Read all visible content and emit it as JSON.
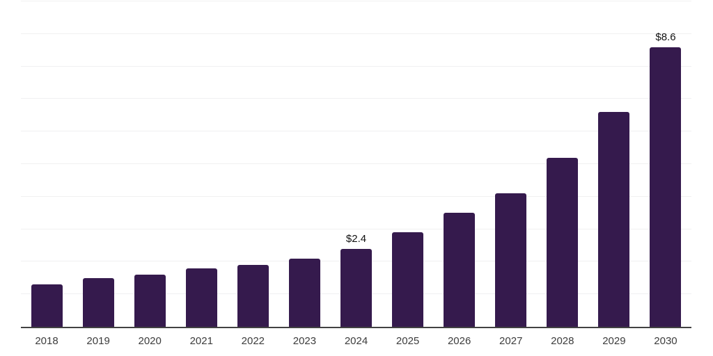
{
  "chart_data": {
    "type": "bar",
    "title": "",
    "xlabel": "",
    "ylabel": "",
    "categories": [
      "2018",
      "2019",
      "2020",
      "2021",
      "2022",
      "2023",
      "2024",
      "2025",
      "2026",
      "2027",
      "2028",
      "2029",
      "2030"
    ],
    "values": [
      1.3,
      1.5,
      1.6,
      1.8,
      1.9,
      2.1,
      2.4,
      2.9,
      3.5,
      4.1,
      5.2,
      6.6,
      8.6
    ],
    "data_labels": [
      "",
      "",
      "",
      "",
      "",
      "",
      "$2.4",
      "",
      "",
      "",
      "",
      "",
      "$8.6"
    ],
    "ylim": [
      0,
      10
    ],
    "gridline_step": 1,
    "grid": true,
    "legend": false,
    "colors": {
      "bar": "#351a4d",
      "gridline": "#f0f0f1",
      "axis_line": "#424242",
      "tick_label": "#3c3c3c",
      "data_label": "#111111",
      "background": "#ffffff"
    }
  }
}
